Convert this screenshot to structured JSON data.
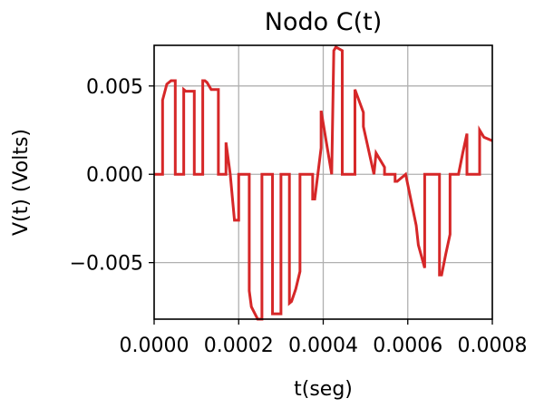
{
  "chart_data": {
    "type": "line",
    "title": "Nodo C(t)",
    "xlabel": "t(seg)",
    "ylabel": "V(t) (Volts)",
    "xlim": [
      0.0,
      0.0008
    ],
    "ylim": [
      -0.0082,
      0.0073
    ],
    "grid": true,
    "xticks": [
      0.0,
      0.0002,
      0.0004,
      0.0006,
      0.0008
    ],
    "xtick_labels": [
      "0.0000",
      "0.0002",
      "0.0004",
      "0.0006",
      "0.0008"
    ],
    "yticks": [
      -0.005,
      0.0,
      0.005
    ],
    "ytick_labels": [
      "−0.005",
      "0.000",
      "0.005"
    ],
    "series": [
      {
        "color": "#d62728",
        "x": [
          0.0,
          2e-05,
          2e-05,
          3e-05,
          4e-05,
          5e-05,
          5e-05,
          7e-05,
          7e-05,
          7.5e-05,
          8e-05,
          8.5e-05,
          9.5e-05,
          9.5e-05,
          0.000115,
          0.000115,
          0.00012,
          0.000125,
          0.00013,
          0.000135,
          0.000152,
          0.000152,
          0.00017,
          0.00017,
          0.00018,
          0.00019,
          0.0002,
          0.0002,
          0.000225,
          0.000225,
          0.00023,
          0.000245,
          0.000255,
          0.000255,
          0.00028,
          0.00028,
          0.0003,
          0.0003,
          0.00032,
          0.00032,
          0.000325,
          0.000335,
          0.000345,
          0.000345,
          0.000375,
          0.000375,
          0.00038,
          0.000395,
          0.000395,
          0.00042,
          0.00042,
          0.000425,
          0.00043,
          0.000445,
          0.000445,
          0.000475,
          0.000475,
          0.000495,
          0.000495,
          0.00052,
          0.00052,
          0.000525,
          0.000545,
          0.000545,
          0.00057,
          0.00057,
          0.000575,
          0.000595,
          0.000595,
          0.00062,
          0.00062,
          0.000625,
          0.00064,
          0.00064,
          0.000675,
          0.000675,
          0.00068,
          0.00069,
          0.0007,
          0.0007,
          0.00072,
          0.00072,
          0.00073,
          0.00074,
          0.00074,
          0.00077,
          0.00077,
          0.00078,
          0.0008
        ],
        "y": [
          0.0,
          0.0,
          0.0042,
          0.0051,
          0.0053,
          0.0053,
          0.0,
          0.0,
          0.0048,
          0.0047,
          0.0047,
          0.0047,
          0.0047,
          0.0,
          0.0,
          0.0053,
          0.0053,
          0.0052,
          0.005,
          0.0048,
          0.0048,
          0.0,
          0.0,
          0.0018,
          0.0,
          -0.0026,
          -0.0026,
          0.0,
          0.0,
          -0.0066,
          -0.0075,
          -0.0082,
          -0.0082,
          0.0,
          0.0,
          -0.0079,
          -0.0079,
          0.0,
          0.0,
          -0.0073,
          -0.0072,
          -0.0065,
          -0.0055,
          0.0,
          0.0,
          -0.0014,
          -0.0014,
          0.0015,
          0.0036,
          0.0,
          0.0,
          0.007,
          0.0072,
          0.007,
          0.0,
          0.0,
          0.0048,
          0.0035,
          0.0027,
          0.0,
          0.0,
          0.0012,
          0.0004,
          0.0,
          0.0,
          -0.0004,
          -0.0004,
          0.0,
          0.0,
          -0.0029,
          -0.0029,
          -0.004,
          -0.0053,
          0.0,
          0.0,
          -0.0057,
          -0.0057,
          -0.0045,
          -0.0034,
          0.0,
          0.0,
          0.0,
          0.0012,
          0.0023,
          0.0,
          0.0,
          0.0025,
          0.0021,
          0.0019
        ]
      }
    ]
  }
}
